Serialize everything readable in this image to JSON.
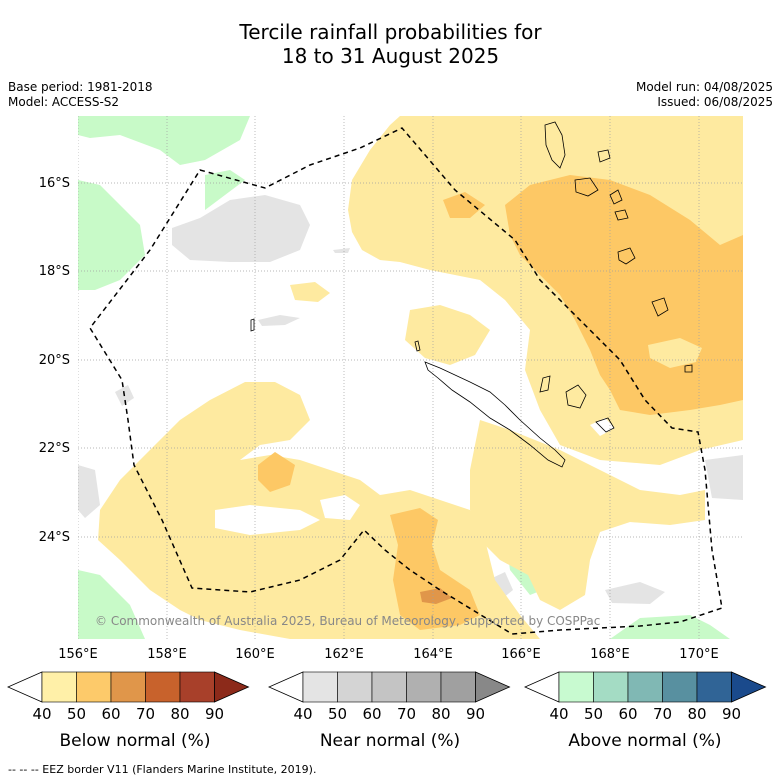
{
  "title": {
    "line1": "Tercile rainfall probabilities for",
    "line2": "18 to 31 August 2025"
  },
  "meta": {
    "base_period": "Base period: 1981-2018",
    "model": "Model: ACCESS-S2",
    "model_run": "Model run: 04/08/2025",
    "issued": "Issued: 06/08/2025"
  },
  "map": {
    "lat_labels": [
      "16°S",
      "18°S",
      "20°S",
      "22°S",
      "24°S"
    ],
    "lon_labels": [
      "156°E",
      "158°E",
      "160°E",
      "162°E",
      "164°E",
      "166°E",
      "168°E",
      "170°E"
    ],
    "copyright": "© Commonwealth of Australia 2025, Bureau of Meteorology, supported by COSPPac",
    "colors": {
      "below_50": "#feeaa0",
      "below_60": "#fdc865",
      "below_70": "#e0964a",
      "near_40": "#e4e4e4",
      "above_40": "#c8fac8",
      "coast": "#000000",
      "eez": "#000000",
      "grid": "#a0a0a0"
    }
  },
  "colorbars": [
    {
      "label": "Below normal (%)",
      "ticks": [
        "40",
        "50",
        "60",
        "70",
        "80",
        "90"
      ],
      "colors": [
        "#fff0a8",
        "#fdca6a",
        "#e0964a",
        "#c8622c",
        "#a8402a"
      ],
      "extend_low": "#ffffff",
      "extend_high": "#8c2a1a"
    },
    {
      "label": "Near normal (%)",
      "ticks": [
        "40",
        "50",
        "60",
        "70",
        "80",
        "90"
      ],
      "colors": [
        "#e4e4e4",
        "#d4d4d4",
        "#c4c4c4",
        "#b0b0b0",
        "#a0a0a0"
      ],
      "extend_low": "#ffffff",
      "extend_high": "#888888"
    },
    {
      "label": "Above normal (%)",
      "ticks": [
        "40",
        "50",
        "60",
        "70",
        "80",
        "90"
      ],
      "colors": [
        "#c8fad0",
        "#a4dcc4",
        "#80b8b4",
        "#5890a0",
        "#306496"
      ],
      "extend_low": "#ffffff",
      "extend_high": "#1a4a8c"
    }
  ],
  "footnote": "-- -- -- EEZ border V11 (Flanders Marine Institute, 2019)."
}
